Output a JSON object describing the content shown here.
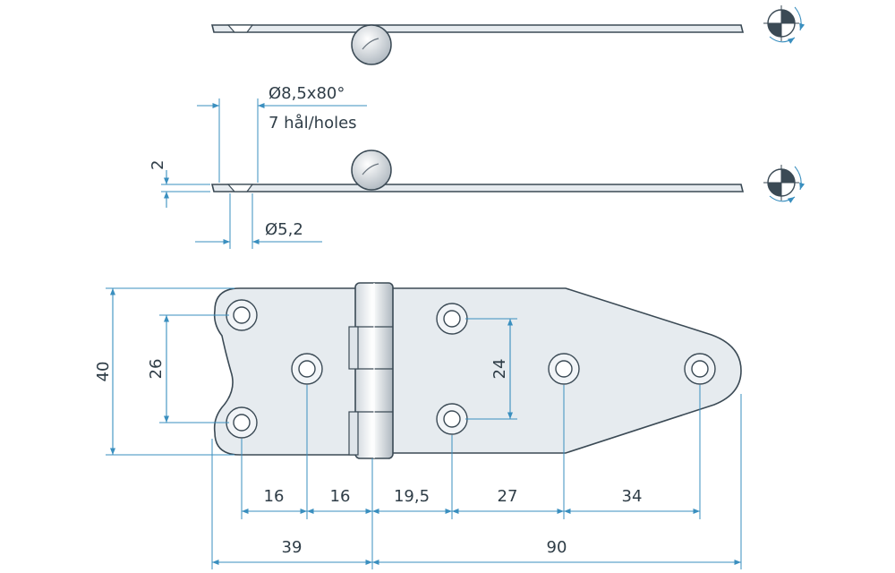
{
  "colors": {
    "dimension_line": "#3a8fbf",
    "outline": "#3b4a55",
    "plate_fill": "#e6ebef",
    "text": "#2f3d47"
  },
  "annotations": {
    "countersink": "Ø8,5x80°",
    "holes": "7 hål/holes",
    "thickness": "2",
    "pin_diameter": "Ø5,2"
  },
  "dimensions": {
    "height_overall": "40",
    "hole_spacing_left": "26",
    "hole_spacing_right": "24",
    "bottom_row": [
      "16",
      "16",
      "19,5",
      "27",
      "34"
    ],
    "total_left": "39",
    "total_right": "90"
  },
  "symbols": [
    "projection-symbol",
    "projection-symbol"
  ]
}
